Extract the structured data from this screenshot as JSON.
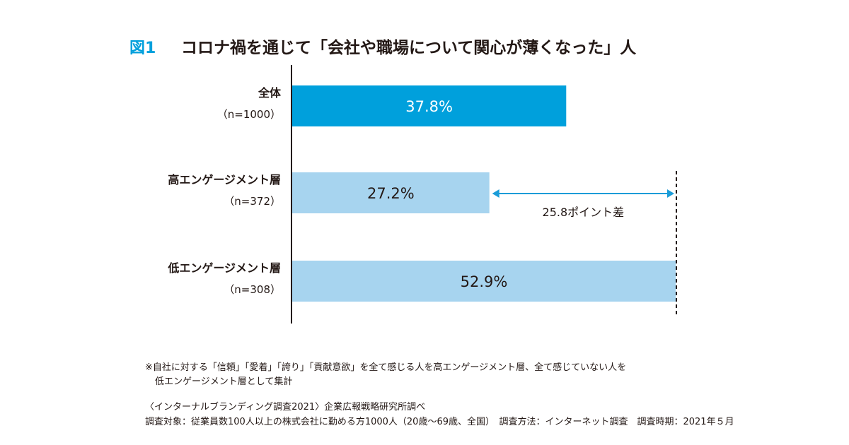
{
  "figure_label": "図1",
  "title": "コロナ禍を通じて「会社や職場について関心が薄くなった」人",
  "chart_data": {
    "type": "bar",
    "orientation": "horizontal",
    "categories": [
      "全体",
      "高エンゲージメント層",
      "低エンゲージメント層"
    ],
    "sample_sizes": [
      "（n=1000）",
      "（n=372）",
      "（n=308）"
    ],
    "values": [
      37.8,
      27.2,
      52.9
    ],
    "value_labels": [
      "37.8%",
      "27.2%",
      "52.9%"
    ],
    "colors": [
      "#00a0dc",
      "#a7d4ef",
      "#a7d4ef"
    ],
    "xlim": [
      0,
      52.9
    ],
    "grid": false,
    "legend": "none",
    "annotation": {
      "text": "25.8ポイント差",
      "from_value": 27.2,
      "to_value": 52.9,
      "color": "#1a9cd8"
    }
  },
  "footnote": {
    "line1": "※自社に対する「信頼」「愛着」「誇り」「貢献意欲」を全て感じる人を高エンゲージメント層、全て感じていない人を",
    "line2": "低エンゲージメント層として集計"
  },
  "source": {
    "line1": "〈インターナルブランディング調査2021〉企業広報戦略研究所調べ",
    "line2": "調査対象：従業員数100人以上の株式会社に勤める方1000人（20歳〜69歳、全国）　調査方法：インターネット調査　調査時期：2021年５月"
  }
}
